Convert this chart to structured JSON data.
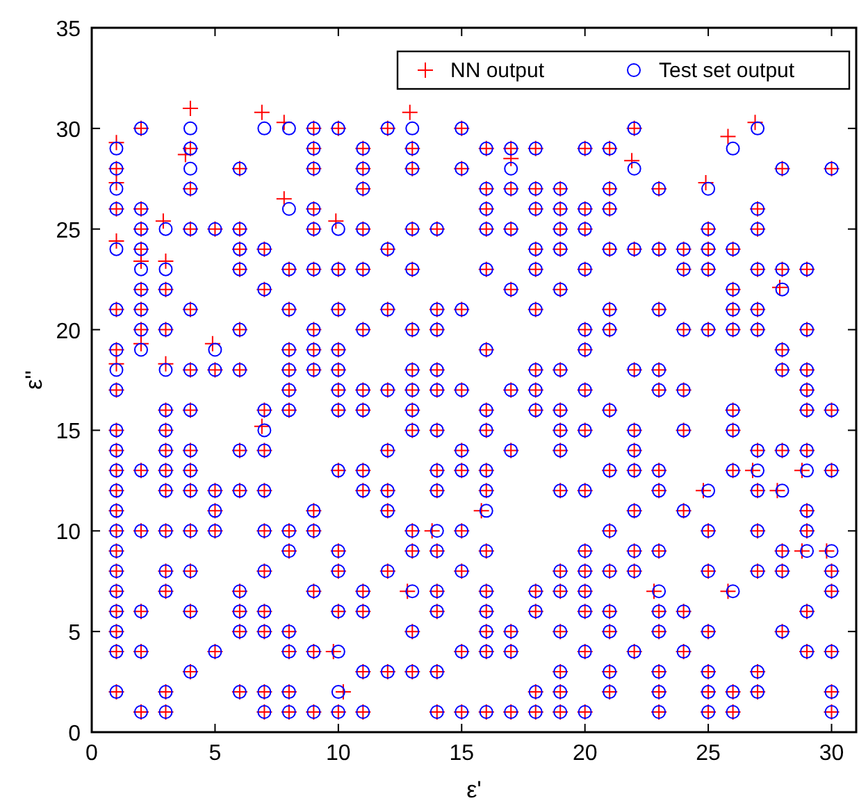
{
  "chart_data": {
    "type": "scatter",
    "xlabel": "ε'",
    "ylabel": "ε''",
    "xlim": [
      0,
      31
    ],
    "ylim": [
      0,
      35
    ],
    "xticks": [
      0,
      5,
      10,
      15,
      20,
      25,
      30
    ],
    "yticks": [
      0,
      5,
      10,
      15,
      20,
      25,
      30,
      35
    ],
    "legend": "top right",
    "series": [
      {
        "name": "NN output",
        "color": "#ff0000",
        "marker": "cross",
        "x": [
          2,
          4,
          6.9,
          7.8,
          9,
          10,
          12,
          12.9,
          15,
          22,
          26.9,
          1,
          4,
          9,
          11,
          13,
          16,
          17,
          18,
          20,
          21,
          25.8,
          1,
          3.8,
          6,
          9,
          11,
          13,
          15,
          17,
          21.9,
          28,
          30,
          1,
          4,
          11,
          16,
          17,
          18,
          19,
          21,
          23,
          24.9,
          1,
          2,
          7.8,
          9,
          16,
          18,
          19,
          20,
          21,
          27,
          2,
          2.9,
          4,
          5,
          6,
          9,
          9.9,
          11,
          13,
          14,
          16,
          17,
          19,
          20,
          25,
          27,
          1,
          2,
          6,
          7,
          12,
          18,
          19,
          21,
          22,
          23,
          24,
          25,
          26,
          2,
          3,
          6,
          8,
          9,
          10,
          11,
          13,
          16,
          18,
          20,
          24,
          25,
          27,
          28,
          29,
          2,
          3,
          7,
          17,
          19,
          26,
          27.9,
          1,
          2,
          4,
          8,
          10,
          12,
          14,
          15,
          18,
          21,
          23,
          26,
          27,
          2,
          3,
          6,
          9,
          11,
          13,
          14,
          20,
          21,
          24,
          25,
          26,
          27,
          29,
          1,
          2,
          4.9,
          8,
          9,
          10,
          16,
          20,
          28,
          1,
          3,
          4,
          5,
          6,
          8,
          9,
          10,
          13,
          14,
          18,
          19,
          22,
          23,
          28,
          29,
          1,
          8,
          10,
          11,
          12,
          13,
          14,
          15,
          17,
          18,
          20,
          23,
          24,
          29,
          3,
          4,
          7,
          8,
          10,
          11,
          13,
          16,
          18,
          19,
          21,
          26,
          29,
          30,
          1,
          3,
          6.9,
          13,
          14,
          16,
          19,
          20,
          22,
          24,
          26,
          1,
          3,
          4,
          6,
          7,
          12,
          15,
          17,
          19,
          22,
          27,
          28,
          29,
          1,
          2,
          3,
          4,
          10,
          11,
          14,
          15,
          16,
          21,
          22,
          23,
          26,
          26.8,
          28.8,
          30,
          1,
          3,
          4,
          5,
          6,
          7,
          11,
          12,
          14,
          16,
          19,
          20,
          23,
          24.8,
          27,
          27.8,
          1,
          5,
          9,
          12,
          15.8,
          22,
          24,
          29,
          1,
          2,
          3,
          4,
          5,
          7,
          8,
          9,
          13,
          13.8,
          15,
          21,
          25,
          27,
          29,
          1,
          8,
          10,
          13,
          14,
          16,
          20,
          22,
          23,
          28,
          28.8,
          29.8,
          1,
          3,
          4,
          7,
          10,
          12,
          15,
          19,
          20,
          21,
          22,
          25,
          27,
          28,
          30,
          1,
          3,
          6,
          9,
          11,
          12.8,
          14,
          16,
          18,
          19,
          20,
          22.8,
          25.8,
          30,
          1,
          2,
          4,
          6,
          7,
          10,
          11,
          14,
          16,
          18,
          20,
          21,
          23,
          24,
          29,
          1,
          6,
          7,
          8,
          13,
          16,
          17,
          19,
          21,
          23,
          25,
          28,
          1,
          2,
          5,
          8,
          9,
          9.8,
          15,
          16,
          17,
          20,
          22,
          24,
          29,
          30,
          4,
          11,
          12,
          13,
          14,
          19,
          21,
          23,
          25,
          27,
          1,
          3,
          6,
          7,
          8,
          10.2,
          18,
          19,
          21,
          23,
          25,
          26,
          27,
          30,
          2,
          3,
          7,
          8,
          9,
          10,
          11,
          14,
          15,
          16,
          17,
          18,
          19,
          20,
          23,
          25,
          26,
          30
        ],
        "values": [
          30,
          31,
          30.8,
          30.3,
          30,
          30,
          30,
          30.8,
          30,
          30,
          30.3,
          29.3,
          29,
          29,
          29,
          29,
          29,
          29,
          29,
          29,
          29,
          29.6,
          28,
          28.7,
          28,
          28,
          28,
          28,
          28,
          28.5,
          28.4,
          28,
          28,
          27.3,
          27,
          27,
          27,
          27,
          27,
          27,
          27,
          27,
          27.3,
          26,
          26,
          26.5,
          26,
          26,
          26,
          26,
          26,
          26,
          26,
          25,
          25.4,
          25,
          25,
          25,
          25,
          25.4,
          25,
          25,
          25,
          25,
          25,
          25,
          25,
          25,
          25,
          24.4,
          24,
          24,
          24,
          24,
          24,
          24,
          24,
          24,
          24,
          24,
          24,
          24,
          23.4,
          23.4,
          23,
          23,
          23,
          23,
          23,
          23,
          23,
          23,
          23,
          23,
          23,
          23,
          23,
          23,
          22,
          22,
          22,
          22,
          22,
          22,
          22.1,
          21,
          21,
          21,
          21,
          21,
          21,
          21,
          21,
          21,
          21,
          21,
          21,
          21,
          20,
          20,
          20,
          20,
          20,
          20,
          20,
          20,
          20,
          20,
          20,
          20,
          20,
          20,
          19,
          19.3,
          19.3,
          19,
          19,
          19,
          19,
          19,
          19,
          18.3,
          18.3,
          18,
          18,
          18,
          18,
          18,
          18,
          18,
          18,
          18,
          18,
          18,
          18,
          18,
          18,
          17,
          17,
          17,
          17,
          17,
          17,
          17,
          17,
          17,
          17,
          17,
          17,
          17,
          17,
          16,
          16,
          16,
          16,
          16,
          16,
          16,
          16,
          16,
          16,
          16,
          16,
          16,
          16,
          15,
          15,
          15.2,
          15,
          15,
          15,
          15,
          15,
          15,
          15,
          15,
          14,
          14,
          14,
          14,
          14,
          14,
          14,
          14,
          14,
          14,
          14,
          14,
          14,
          13,
          13,
          13,
          13,
          13,
          13,
          13,
          13,
          13,
          13,
          13,
          13,
          13,
          13,
          13,
          13,
          12,
          12,
          12,
          12,
          12,
          12,
          12,
          12,
          12,
          12,
          12,
          12,
          12,
          12,
          12,
          12,
          11,
          11,
          11,
          11,
          11,
          11,
          11,
          11,
          10,
          10,
          10,
          10,
          10,
          10,
          10,
          10,
          10,
          10,
          10,
          10,
          10,
          10,
          10,
          9,
          9,
          9,
          9,
          9,
          9,
          9,
          9,
          9,
          9,
          9,
          9,
          8,
          8,
          8,
          8,
          8,
          8,
          8,
          8,
          8,
          8,
          8,
          8,
          8,
          8,
          8,
          7,
          7,
          7,
          7,
          7,
          7,
          7,
          7,
          7,
          7,
          7,
          7,
          7,
          7,
          6,
          6,
          6,
          6,
          6,
          6,
          6,
          6,
          6,
          6,
          6,
          6,
          6,
          6,
          6,
          5,
          5,
          5,
          5,
          5,
          5,
          5,
          5,
          5,
          5,
          5,
          5,
          4,
          4,
          4,
          4,
          4,
          4,
          4,
          4,
          4,
          4,
          4,
          4,
          4,
          4,
          3,
          3,
          3,
          3,
          3,
          3,
          3,
          3,
          3,
          3,
          2,
          2,
          2,
          2,
          2,
          2,
          2,
          2,
          2,
          2,
          2,
          2,
          2,
          2,
          1,
          1,
          1,
          1,
          1,
          1,
          1,
          1,
          1,
          1,
          1,
          1,
          1,
          1,
          1,
          1,
          1,
          1
        ]
      },
      {
        "name": "Test set output",
        "color": "#0000ff",
        "marker": "circle",
        "x": [
          2,
          4,
          7,
          8,
          9,
          10,
          12,
          13,
          15,
          22,
          27,
          1,
          4,
          9,
          11,
          13,
          16,
          17,
          18,
          20,
          21,
          26,
          1,
          4,
          6,
          9,
          11,
          13,
          15,
          17,
          22,
          28,
          30,
          1,
          4,
          11,
          16,
          17,
          18,
          19,
          21,
          23,
          25,
          1,
          2,
          8,
          9,
          16,
          18,
          19,
          20,
          21,
          27,
          2,
          3,
          4,
          5,
          6,
          9,
          10,
          11,
          13,
          14,
          16,
          17,
          19,
          20,
          25,
          27,
          1,
          2,
          6,
          7,
          12,
          18,
          19,
          21,
          22,
          23,
          24,
          25,
          26,
          2,
          3,
          6,
          8,
          9,
          10,
          11,
          13,
          16,
          18,
          20,
          24,
          25,
          27,
          28,
          29,
          2,
          3,
          7,
          17,
          19,
          26,
          28,
          1,
          2,
          4,
          8,
          10,
          12,
          14,
          15,
          18,
          21,
          23,
          26,
          27,
          2,
          3,
          6,
          9,
          11,
          13,
          14,
          20,
          21,
          24,
          25,
          26,
          27,
          29,
          1,
          2,
          5,
          8,
          9,
          10,
          16,
          20,
          28,
          1,
          3,
          4,
          5,
          6,
          8,
          9,
          10,
          13,
          14,
          18,
          19,
          22,
          23,
          28,
          29,
          1,
          8,
          10,
          11,
          12,
          13,
          14,
          15,
          17,
          18,
          20,
          23,
          24,
          29,
          3,
          4,
          7,
          8,
          10,
          11,
          13,
          16,
          18,
          19,
          21,
          26,
          29,
          30,
          1,
          3,
          7,
          13,
          14,
          16,
          19,
          20,
          22,
          24,
          26,
          1,
          3,
          4,
          6,
          7,
          12,
          15,
          17,
          19,
          22,
          27,
          28,
          29,
          1,
          2,
          3,
          4,
          10,
          11,
          14,
          15,
          16,
          21,
          22,
          23,
          26,
          27,
          29,
          30,
          1,
          3,
          4,
          5,
          6,
          7,
          11,
          12,
          14,
          16,
          19,
          20,
          23,
          25,
          27,
          28,
          1,
          5,
          9,
          12,
          16,
          22,
          24,
          29,
          1,
          2,
          3,
          4,
          5,
          7,
          8,
          9,
          13,
          14,
          15,
          21,
          25,
          27,
          29,
          1,
          8,
          10,
          13,
          14,
          16,
          20,
          22,
          23,
          28,
          29,
          30,
          1,
          3,
          4,
          7,
          10,
          12,
          15,
          19,
          20,
          21,
          22,
          25,
          27,
          28,
          30,
          1,
          3,
          6,
          9,
          11,
          13,
          14,
          16,
          18,
          19,
          20,
          23,
          26,
          30,
          1,
          2,
          4,
          6,
          7,
          10,
          11,
          14,
          16,
          18,
          20,
          21,
          23,
          24,
          29,
          1,
          6,
          7,
          8,
          13,
          16,
          17,
          19,
          21,
          23,
          25,
          28,
          1,
          2,
          5,
          8,
          9,
          10,
          15,
          16,
          17,
          20,
          22,
          24,
          29,
          30,
          4,
          11,
          12,
          13,
          14,
          19,
          21,
          23,
          25,
          27,
          1,
          3,
          6,
          7,
          8,
          10,
          18,
          19,
          21,
          23,
          25,
          26,
          27,
          30,
          2,
          3,
          7,
          8,
          9,
          10,
          11,
          14,
          15,
          16,
          17,
          18,
          19,
          20,
          23,
          25,
          26,
          30
        ],
        "values": [
          30,
          30,
          30,
          30,
          30,
          30,
          30,
          30,
          30,
          30,
          30,
          29,
          29,
          29,
          29,
          29,
          29,
          29,
          29,
          29,
          29,
          29,
          28,
          28,
          28,
          28,
          28,
          28,
          28,
          28,
          28,
          28,
          28,
          27,
          27,
          27,
          27,
          27,
          27,
          27,
          27,
          27,
          27,
          26,
          26,
          26,
          26,
          26,
          26,
          26,
          26,
          26,
          26,
          25,
          25,
          25,
          25,
          25,
          25,
          25,
          25,
          25,
          25,
          25,
          25,
          25,
          25,
          25,
          25,
          24,
          24,
          24,
          24,
          24,
          24,
          24,
          24,
          24,
          24,
          24,
          24,
          24,
          23,
          23,
          23,
          23,
          23,
          23,
          23,
          23,
          23,
          23,
          23,
          23,
          23,
          23,
          23,
          23,
          22,
          22,
          22,
          22,
          22,
          22,
          22,
          21,
          21,
          21,
          21,
          21,
          21,
          21,
          21,
          21,
          21,
          21,
          21,
          21,
          20,
          20,
          20,
          20,
          20,
          20,
          20,
          20,
          20,
          20,
          20,
          20,
          20,
          20,
          19,
          19,
          19,
          19,
          19,
          19,
          19,
          19,
          19,
          18,
          18,
          18,
          18,
          18,
          18,
          18,
          18,
          18,
          18,
          18,
          18,
          18,
          18,
          18,
          18,
          17,
          17,
          17,
          17,
          17,
          17,
          17,
          17,
          17,
          17,
          17,
          17,
          17,
          17,
          16,
          16,
          16,
          16,
          16,
          16,
          16,
          16,
          16,
          16,
          16,
          16,
          16,
          16,
          15,
          15,
          15,
          15,
          15,
          15,
          15,
          15,
          15,
          15,
          15,
          14,
          14,
          14,
          14,
          14,
          14,
          14,
          14,
          14,
          14,
          14,
          14,
          14,
          13,
          13,
          13,
          13,
          13,
          13,
          13,
          13,
          13,
          13,
          13,
          13,
          13,
          13,
          13,
          13,
          12,
          12,
          12,
          12,
          12,
          12,
          12,
          12,
          12,
          12,
          12,
          12,
          12,
          12,
          12,
          12,
          11,
          11,
          11,
          11,
          11,
          11,
          11,
          11,
          10,
          10,
          10,
          10,
          10,
          10,
          10,
          10,
          10,
          10,
          10,
          10,
          10,
          10,
          10,
          9,
          9,
          9,
          9,
          9,
          9,
          9,
          9,
          9,
          9,
          9,
          9,
          8,
          8,
          8,
          8,
          8,
          8,
          8,
          8,
          8,
          8,
          8,
          8,
          8,
          8,
          8,
          7,
          7,
          7,
          7,
          7,
          7,
          7,
          7,
          7,
          7,
          7,
          7,
          7,
          7,
          6,
          6,
          6,
          6,
          6,
          6,
          6,
          6,
          6,
          6,
          6,
          6,
          6,
          6,
          6,
          5,
          5,
          5,
          5,
          5,
          5,
          5,
          5,
          5,
          5,
          5,
          5,
          4,
          4,
          4,
          4,
          4,
          4,
          4,
          4,
          4,
          4,
          4,
          4,
          4,
          4,
          3,
          3,
          3,
          3,
          3,
          3,
          3,
          3,
          3,
          3,
          2,
          2,
          2,
          2,
          2,
          2,
          2,
          2,
          2,
          2,
          2,
          2,
          2,
          2,
          1,
          1,
          1,
          1,
          1,
          1,
          1,
          1,
          1,
          1,
          1,
          1,
          1,
          1,
          1,
          1,
          1,
          1
        ]
      }
    ]
  }
}
